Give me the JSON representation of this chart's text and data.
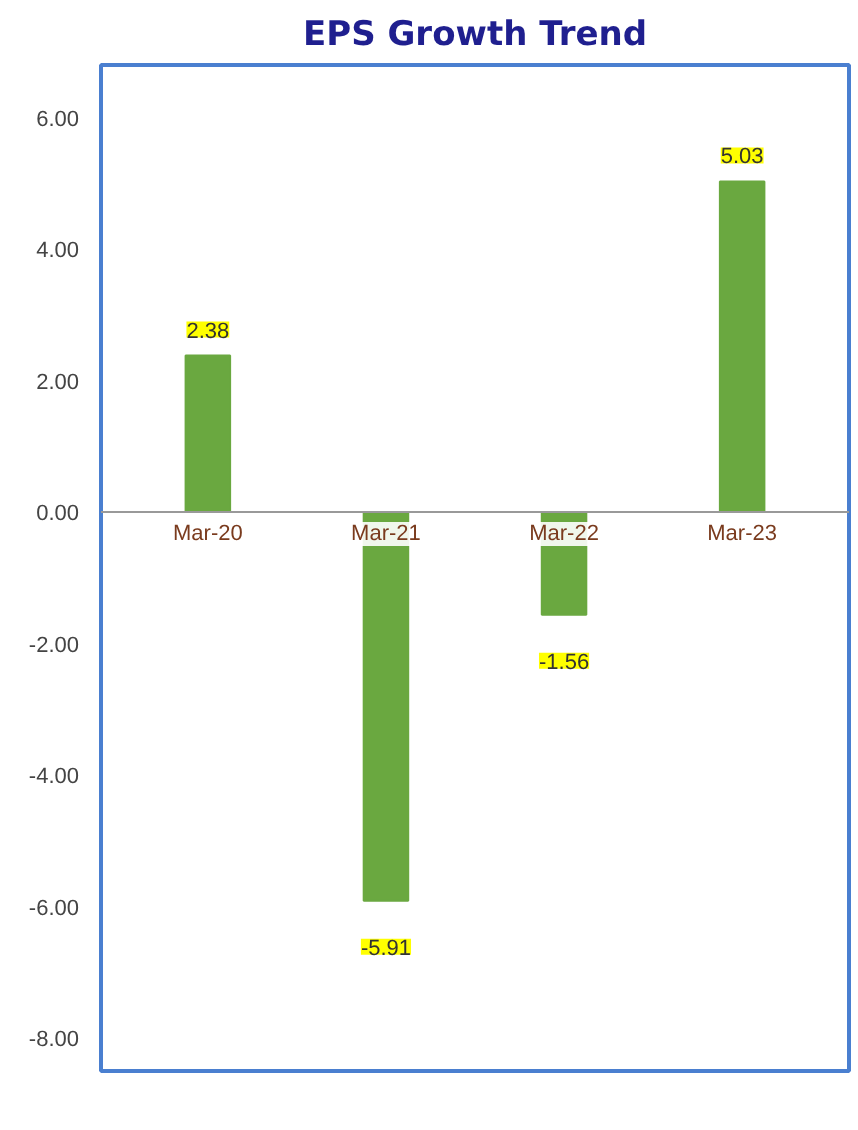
{
  "chart_data": {
    "type": "bar",
    "title": "EPS Growth Trend",
    "categories": [
      "Mar-20",
      "Mar-21",
      "Mar-22",
      "Mar-23"
    ],
    "values": [
      2.38,
      -5.91,
      -1.56,
      5.03
    ],
    "color": "#6aa840",
    "ylim": [
      -8.5,
      6.8
    ],
    "yticks": [
      {
        "value": -8,
        "label": "-8.00"
      },
      {
        "value": -6,
        "label": "-6.00"
      },
      {
        "value": -4,
        "label": "-4.00"
      },
      {
        "value": -2,
        "label": "-2.00"
      },
      {
        "value": 0,
        "label": "0.00"
      },
      {
        "value": 2,
        "label": "2.00"
      },
      {
        "value": 4,
        "label": "4.00"
      },
      {
        "value": 6,
        "label": "6.00"
      }
    ],
    "data_labels": true
  }
}
